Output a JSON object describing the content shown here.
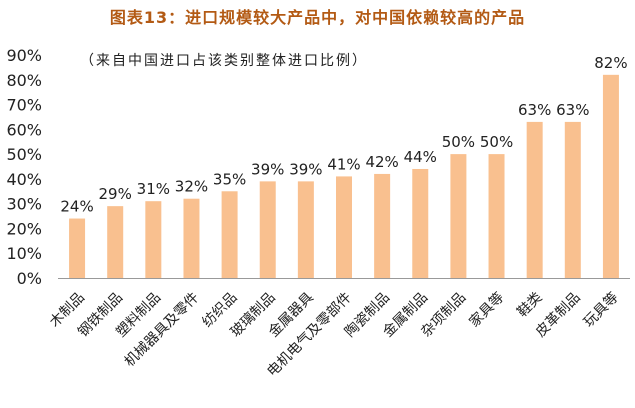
{
  "title": "图表13：进口规模较大产品中，对中国依赖较高的产品",
  "subtitle": "（来自中国进口占该类别整体进口比例）",
  "colors": {
    "bar": "#f9c08f",
    "title": "#b35a14",
    "axis": "#999999",
    "text": "#222222"
  },
  "chart_data": {
    "type": "bar",
    "title": "图表13：进口规模较大产品中，对中国依赖较高的产品",
    "subtitle": "（来自中国进口占该类别整体进口比例）",
    "xlabel": "",
    "ylabel": "",
    "ylim": [
      0,
      90
    ],
    "yticks": [
      "0%",
      "10%",
      "20%",
      "30%",
      "40%",
      "50%",
      "60%",
      "70%",
      "80%",
      "90%"
    ],
    "grid": false,
    "categories": [
      "木制品",
      "钢铁制品",
      "塑料制品",
      "机械器具及零件",
      "纺织品",
      "玻璃制品",
      "金属器具",
      "电机电气及零部件",
      "陶瓷制品",
      "金属制品",
      "杂项制品",
      "家具等",
      "鞋类",
      "皮革制品",
      "玩具等"
    ],
    "values": [
      24,
      29,
      31,
      32,
      35,
      39,
      39,
      41,
      42,
      44,
      50,
      50,
      63,
      63,
      82
    ],
    "data_labels": [
      "24%",
      "29%",
      "31%",
      "32%",
      "35%",
      "39%",
      "39%",
      "41%",
      "42%",
      "44%",
      "50%",
      "50%",
      "63%",
      "63%",
      "82%"
    ]
  }
}
